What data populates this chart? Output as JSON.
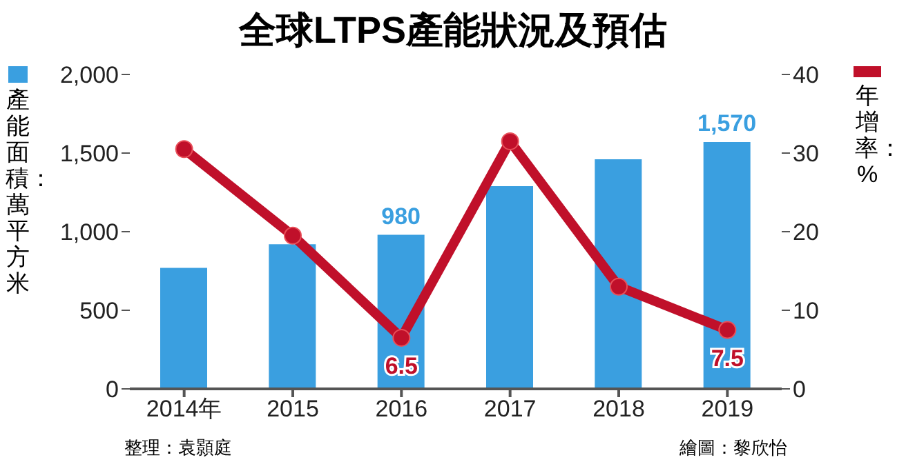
{
  "chart_data": {
    "type": "bar",
    "title": "全球LTPS產能狀況及預估",
    "categories": [
      "2014年",
      "2015",
      "2016",
      "2017",
      "2018",
      "2019"
    ],
    "series": [
      {
        "color": "#3a9fe0",
        "values": [
          770,
          920,
          980,
          1290,
          1460,
          1570
        ],
        "value_labels": [
          null,
          null,
          "980",
          null,
          null,
          "1,570"
        ]
      },
      {
        "type": "line",
        "axis": "y2",
        "color": "#c0102a",
        "values": [
          30.5,
          19.5,
          6.5,
          31.5,
          13,
          7.5
        ],
        "value_labels": [
          null,
          null,
          "6.5",
          null,
          null,
          "7.5"
        ]
      }
    ],
    "ylabel": "產能面積：萬平方米",
    "y2label": "年增率：%",
    "ylim": [
      0,
      2000
    ],
    "yticks": [
      0,
      500,
      {
        "value": 1000,
        "label": "1,000"
      },
      {
        "value": 1500,
        "label": "1,500"
      },
      {
        "value": 2000,
        "label": "2,000"
      }
    ],
    "y2lim": [
      0,
      40
    ],
    "y2ticks": [
      0,
      10,
      20,
      30,
      40
    ],
    "grid": false,
    "marker": "circle",
    "line_style": "solid",
    "annotations": [
      "整理：袁顥庭",
      "繪圖：黎欣怡"
    ]
  }
}
